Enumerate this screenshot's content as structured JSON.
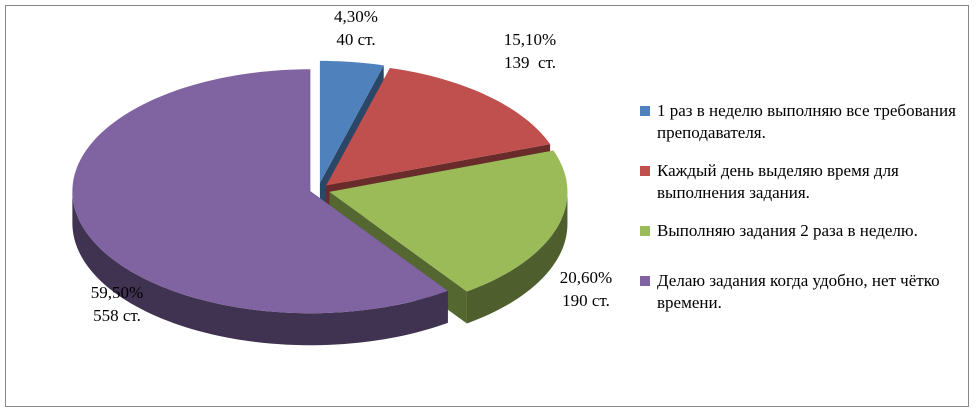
{
  "chart_data": {
    "type": "pie3d",
    "categories": [
      "1 раз в неделю выполняю все требования преподавателя.",
      "Каждый день выделяю время для выполнения задания.",
      "Выполняю задания 2 раза в неделю.",
      "Делаю задания когда удобно, нет чётко времени."
    ],
    "values": [
      4.3,
      15.1,
      20.6,
      59.5
    ],
    "value_labels": [
      "4,30%",
      "15,10%",
      "20,60%",
      "59,50%"
    ],
    "count_labels": [
      "40 ст.",
      "139  ст.",
      "190 ст.",
      "558 ст."
    ],
    "colors": [
      "#4f81bd",
      "#c0504d",
      "#9bbb59",
      "#8064a2"
    ],
    "legend": "right"
  }
}
